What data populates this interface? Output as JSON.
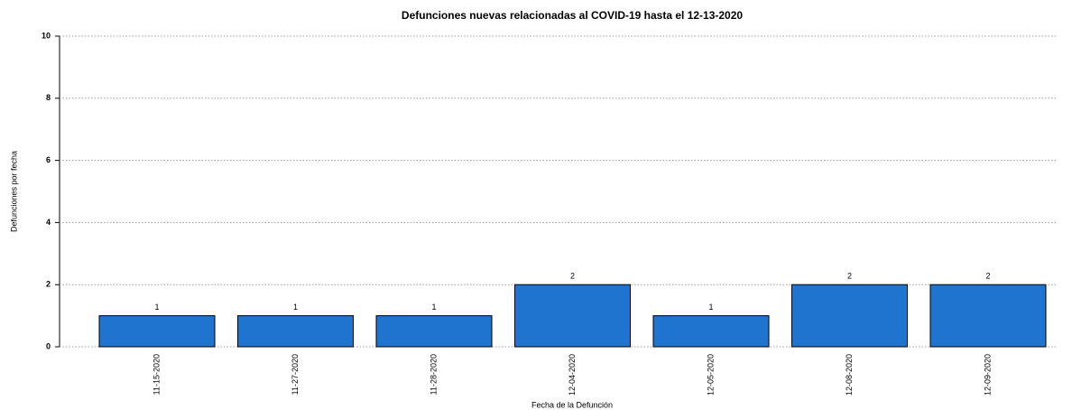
{
  "chart_data": {
    "type": "bar",
    "title": "Defunciones nuevas relacionadas al COVID-19 hasta el 12-13-2020",
    "x_label": "Fecha de la Defunción",
    "y_label": "Defunciones por fecha",
    "categories": [
      "11-15-2020",
      "11-27-2020",
      "11-28-2020",
      "12-04-2020",
      "12-05-2020",
      "12-08-2020",
      "12-09-2020"
    ],
    "values": [
      1,
      1,
      1,
      2,
      1,
      2,
      2
    ],
    "color": "#1f74d0",
    "ylim": [
      0,
      10
    ],
    "yticks": [
      0,
      2,
      4,
      6,
      8,
      10
    ],
    "grid": true
  }
}
